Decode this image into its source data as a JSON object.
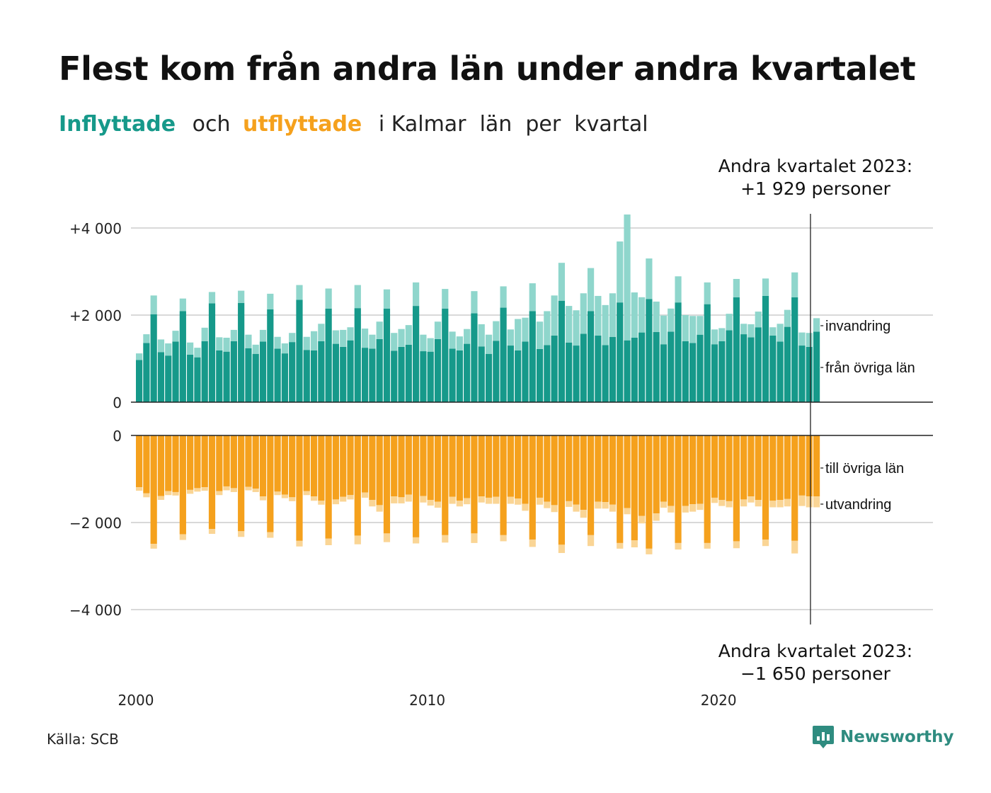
{
  "title": "Flest kom från andra län under andra kvartalet",
  "subtitle": {
    "inflow_word": "Inflyttade",
    "and_word": "och",
    "outflow_word": "utflyttade",
    "rest": "i Kalmar  län  per  kvartal"
  },
  "source": "Källa: SCB",
  "logo_text": "Newsworthy",
  "colors": {
    "inflow_dark": "#16998a",
    "inflow_light": "#8fd6cc",
    "outflow_dark": "#f5a11d",
    "outflow_light": "#fad595",
    "grid": "#d9d9d9",
    "axis": "#222222",
    "logo": "#2f8c80"
  },
  "chart_data": {
    "type": "bar",
    "stacked": true,
    "x_start": "2000 Q1",
    "x_end": "2023 Q2",
    "x_ticks": [
      "2000",
      "2010",
      "2020"
    ],
    "upper_panel": {
      "y_ticks": [
        "+4 000",
        "+2 000",
        "0"
      ],
      "ylim": [
        0,
        4300
      ],
      "series": [
        {
          "name": "från övriga län",
          "values": [
            970,
            1360,
            2020,
            1150,
            1070,
            1390,
            2090,
            1090,
            1030,
            1400,
            2270,
            1190,
            1160,
            1400,
            2280,
            1240,
            1110,
            1390,
            2130,
            1230,
            1120,
            1380,
            2350,
            1200,
            1190,
            1400,
            2150,
            1340,
            1270,
            1420,
            2160,
            1250,
            1230,
            1450,
            2150,
            1180,
            1270,
            1320,
            2210,
            1170,
            1160,
            1450,
            2150,
            1230,
            1190,
            1340,
            2040,
            1280,
            1110,
            1410,
            2170,
            1300,
            1190,
            1390,
            2090,
            1220,
            1310,
            1530,
            2330,
            1370,
            1300,
            1570,
            2090,
            1530,
            1310,
            1500,
            2290,
            1420,
            1480,
            1600,
            2370,
            1610,
            1330,
            1620,
            2290,
            1400,
            1360,
            1550,
            2250,
            1330,
            1400,
            1650,
            2410,
            1560,
            1490,
            1720,
            2440,
            1530,
            1390,
            1730,
            2410,
            1300,
            1270,
            1620
          ],
          "color": "#16998a"
        },
        {
          "name": "invandring",
          "values": [
            150,
            200,
            430,
            290,
            280,
            250,
            290,
            280,
            220,
            310,
            260,
            300,
            320,
            260,
            280,
            310,
            210,
            270,
            360,
            270,
            230,
            210,
            340,
            300,
            440,
            400,
            460,
            310,
            390,
            300,
            530,
            440,
            320,
            400,
            440,
            410,
            410,
            450,
            540,
            380,
            310,
            400,
            450,
            390,
            320,
            340,
            510,
            510,
            440,
            450,
            490,
            370,
            720,
            550,
            640,
            630,
            780,
            920,
            870,
            840,
            810,
            930,
            990,
            910,
            920,
            1000,
            1400,
            2890,
            1040,
            810,
            930,
            700,
            660,
            530,
            600,
            600,
            620,
            430,
            500,
            340,
            300,
            380,
            420,
            240,
            300,
            360,
            400,
            190,
            410,
            390,
            570,
            300,
            320,
            309
          ]
        }
      ]
    },
    "lower_panel": {
      "y_ticks": [
        "0",
        "−2 000",
        "−4 000"
      ],
      "ylim": [
        -4800,
        0
      ],
      "series": [
        {
          "name": "till övriga län",
          "values": [
            -1190,
            -1330,
            -2490,
            -1390,
            -1280,
            -1300,
            -2270,
            -1250,
            -1210,
            -1190,
            -2150,
            -1280,
            -1170,
            -1210,
            -2200,
            -1180,
            -1220,
            -1400,
            -2220,
            -1290,
            -1360,
            -1420,
            -2420,
            -1280,
            -1400,
            -1500,
            -2370,
            -1470,
            -1410,
            -1370,
            -2300,
            -1310,
            -1480,
            -1600,
            -2250,
            -1400,
            -1420,
            -1360,
            -2340,
            -1390,
            -1480,
            -1520,
            -2290,
            -1410,
            -1500,
            -1440,
            -2250,
            -1400,
            -1430,
            -1410,
            -2290,
            -1410,
            -1450,
            -1570,
            -2390,
            -1430,
            -1520,
            -1600,
            -2510,
            -1510,
            -1590,
            -1710,
            -2290,
            -1520,
            -1530,
            -1590,
            -2470,
            -1670,
            -2410,
            -1850,
            -2600,
            -1790,
            -1520,
            -1620,
            -2470,
            -1620,
            -1580,
            -1570,
            -2470,
            -1430,
            -1480,
            -1510,
            -2430,
            -1470,
            -1400,
            -1480,
            -2390,
            -1500,
            -1480,
            -1460,
            -2420,
            -1380,
            -1400,
            -1400
          ],
          "color": "#f5a11d"
        },
        {
          "name": "utvandring",
          "values": [
            -80,
            -90,
            -110,
            -90,
            -90,
            -80,
            -130,
            -90,
            -80,
            -80,
            -110,
            -90,
            -90,
            -90,
            -130,
            -80,
            -80,
            -90,
            -130,
            -80,
            -80,
            -90,
            -130,
            -90,
            -100,
            -90,
            -150,
            -110,
            -110,
            -100,
            -200,
            -120,
            -150,
            -150,
            -200,
            -160,
            -140,
            -160,
            -140,
            -150,
            -130,
            -140,
            -170,
            -160,
            -130,
            -140,
            -220,
            -140,
            -140,
            -160,
            -140,
            -160,
            -140,
            -160,
            -170,
            -160,
            -150,
            -160,
            -190,
            -130,
            -160,
            -180,
            -250,
            -160,
            -150,
            -160,
            -130,
            -140,
            -160,
            -170,
            -130,
            -170,
            -140,
            -150,
            -150,
            -150,
            -170,
            -140,
            -130,
            -120,
            -140,
            -140,
            -160,
            -160,
            -140,
            -150,
            -150,
            -150,
            -170,
            -170,
            -290,
            -240,
            -250,
            -250
          ]
        }
      ]
    },
    "annotations": [
      {
        "line1": "Andra kvartalet 2023:",
        "line2": "+1 929 personer",
        "value": 1929
      },
      {
        "line1": "Andra kvartalet 2023:",
        "line2": "−1 650 personer",
        "value": -1650
      }
    ],
    "series_labels": {
      "upper_light": "invandring",
      "upper_dark": "från övriga län",
      "lower_dark": "till övriga län",
      "lower_light": "utvandring"
    }
  }
}
